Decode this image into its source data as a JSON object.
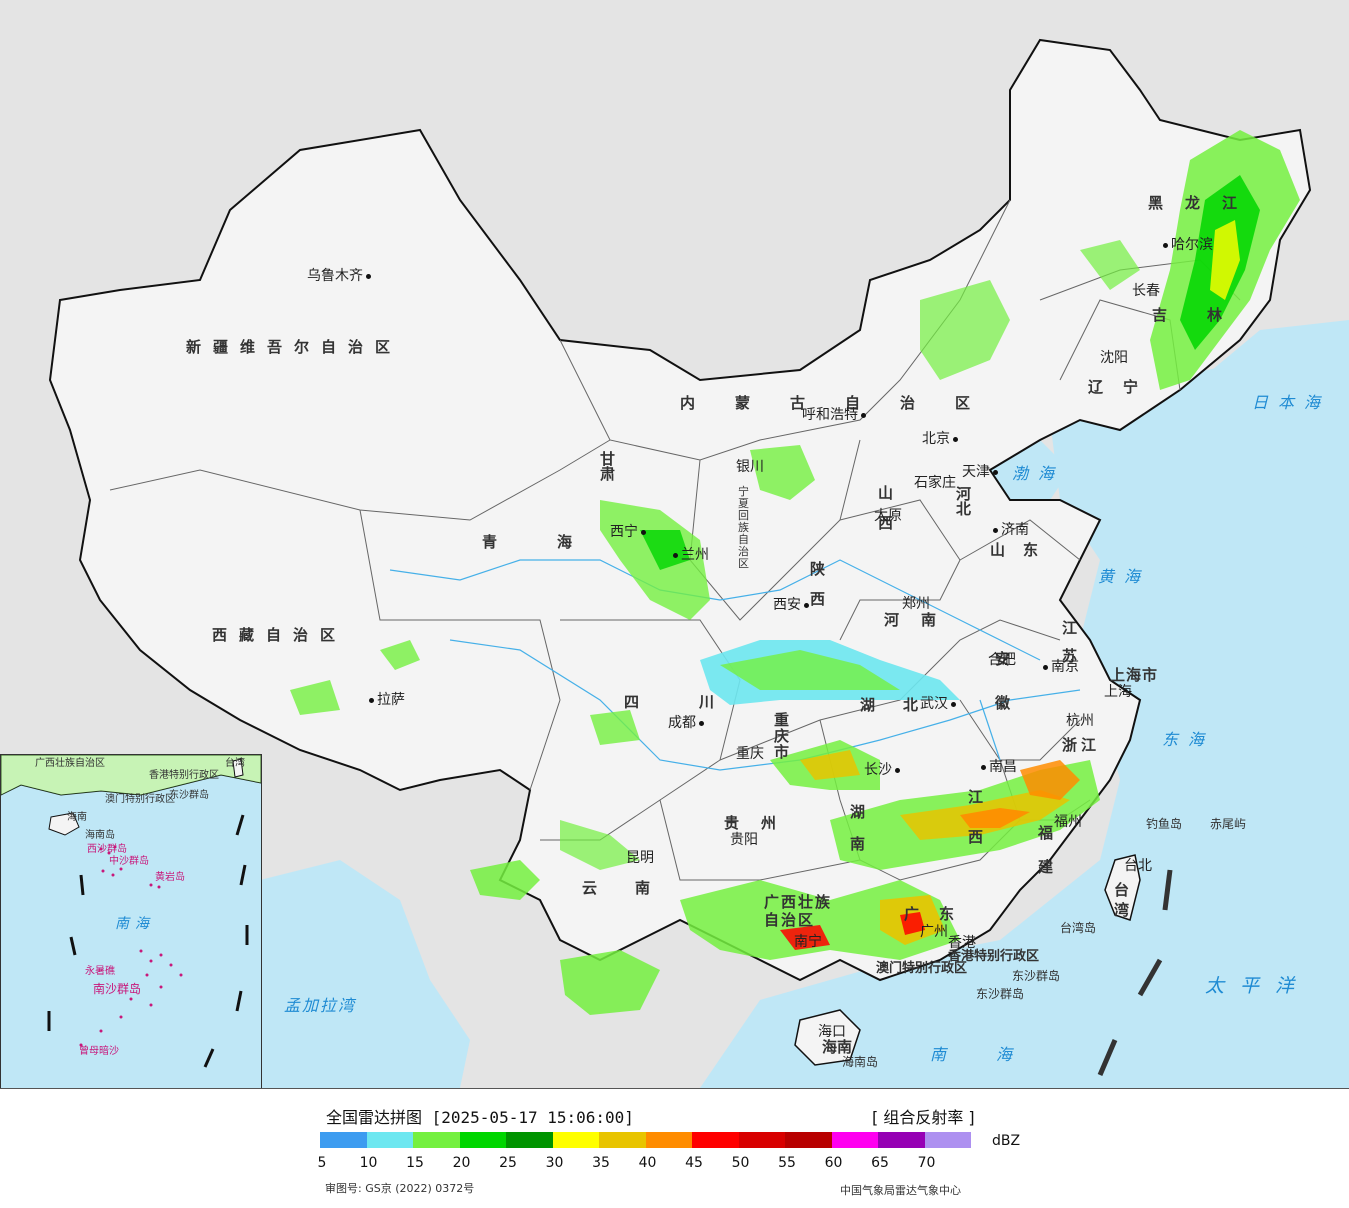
{
  "map": {
    "provinces": [
      {
        "name": "新疆维吾尔自治区"
      },
      {
        "name": "西藏自治区"
      },
      {
        "name": "青海"
      },
      {
        "name": "甘肃"
      },
      {
        "name": "内蒙古自治区"
      },
      {
        "name": "黑龙江"
      },
      {
        "name": "吉林"
      },
      {
        "name": "辽宁"
      },
      {
        "name": "河北"
      },
      {
        "name": "山西"
      },
      {
        "name": "山东"
      },
      {
        "name": "陕西"
      },
      {
        "name": "河南"
      },
      {
        "name": "四川"
      },
      {
        "name": "重庆市"
      },
      {
        "name": "湖北"
      },
      {
        "name": "安徽"
      },
      {
        "name": "江苏"
      },
      {
        "name": "上海市"
      },
      {
        "name": "浙江"
      },
      {
        "name": "江西"
      },
      {
        "name": "湖南"
      },
      {
        "name": "贵州"
      },
      {
        "name": "云南"
      },
      {
        "name": "广西壮族自治区"
      },
      {
        "name": "广东"
      },
      {
        "name": "福建"
      },
      {
        "name": "海南"
      },
      {
        "name": "台湾"
      },
      {
        "name": "宁夏回族自治区"
      },
      {
        "name": "北京"
      },
      {
        "name": "天津"
      }
    ],
    "cities": [
      "乌鲁木齐",
      "拉萨",
      "西宁",
      "兰州",
      "银川",
      "呼和浩特",
      "北京",
      "天津",
      "石家庄",
      "太原",
      "济南",
      "西安",
      "郑州",
      "合肥",
      "南京",
      "上海",
      "杭州",
      "武汉",
      "成都",
      "重庆",
      "长沙",
      "南昌",
      "福州",
      "贵阳",
      "昆明",
      "南宁",
      "广州",
      "香港",
      "澳门",
      "海口",
      "台北",
      "沈阳",
      "长春",
      "哈尔滨"
    ],
    "seas": [
      "日本海",
      "渤海",
      "黄海",
      "东海",
      "太平洋",
      "南海",
      "孟加拉湾"
    ],
    "islands": [
      "钓鱼岛",
      "赤尾屿",
      "台湾岛",
      "东沙群岛",
      "海南岛"
    ],
    "special_regions": [
      "香港特别行政区",
      "澳门特别行政区"
    ],
    "inset": {
      "labels": [
        "广西壮族自治区",
        "香港特别行政区",
        "澳门特别行政区",
        "台湾",
        "东沙群岛",
        "海南",
        "海南岛",
        "西沙群岛",
        "中沙群岛",
        "黄岩岛",
        "南海",
        "永暑礁",
        "南沙群岛",
        "曾母暗沙"
      ]
    }
  },
  "legend": {
    "title": "全国雷达拼图 [2025-05-17 15:06:00]",
    "product": "[ 组合反射率 ]",
    "unit": "dBZ",
    "colors": [
      "#3d9cf0",
      "#6de7f0",
      "#74f040",
      "#00d600",
      "#009400",
      "#ffff00",
      "#e8c400",
      "#ff8c00",
      "#ff0000",
      "#d80000",
      "#b80000",
      "#ff00f0",
      "#9600b4",
      "#ad90f0"
    ],
    "ticks": [
      "5",
      "10",
      "15",
      "20",
      "25",
      "30",
      "35",
      "40",
      "45",
      "50",
      "55",
      "60",
      "65",
      "70"
    ],
    "approval": "审图号: GS京 (2022) 0372号",
    "credit": "中国气象局雷达气象中心"
  }
}
